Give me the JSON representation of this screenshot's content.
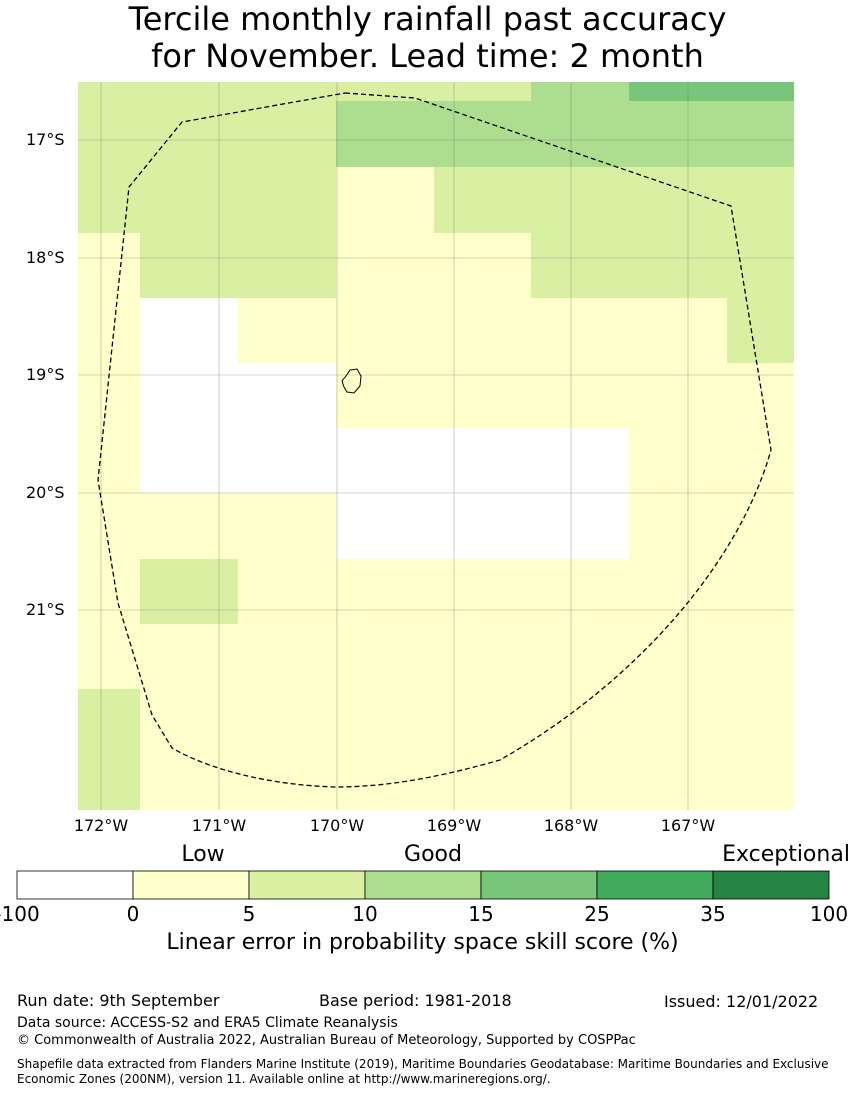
{
  "title": {
    "line1": "Tercile monthly rainfall past accuracy",
    "line2": "for November. Lead time: 2 month"
  },
  "map": {
    "lat_labels": [
      "17°S",
      "18°S",
      "19°S",
      "20°S",
      "21°S"
    ],
    "lon_labels": [
      "172°W",
      "171°W",
      "170°W",
      "169°W",
      "168°W",
      "167°W"
    ],
    "colors": [
      "#ffffff",
      "#ffffcc",
      "#d9f0a3",
      "#addd8e",
      "#78c679",
      "#41ab5d",
      "#238443"
    ]
  },
  "colorbar": {
    "categories": [
      "Low",
      "Good",
      "Exceptional"
    ],
    "ticks": [
      "-100",
      "0",
      "5",
      "10",
      "15",
      "25",
      "35",
      "100"
    ],
    "colors": [
      "#ffffff",
      "#ffffcc",
      "#d9f0a3",
      "#addd8e",
      "#78c679",
      "#41ab5d",
      "#238443"
    ],
    "label": "Linear error in probability space skill score (%)"
  },
  "footer": {
    "run_date": "Run date: 9th September",
    "base_period": "Base period: 1981-2018",
    "issued": "Issued: 12/01/2022",
    "data_source": "Data source: ACCESS-S2 and ERA5 Climate Reanalysis",
    "copyright": "© Commonwealth of Australia 2022, Australian Bureau of Meteorology, Supported by COSPPac",
    "shapefile": "Shapefile data extracted from Flanders Marine Institute (2019), Maritime Boundaries Geodatabase: Maritime Boundaries and Exclusive Economic Zones (200NM), version 11. Available online at http://www.marineregions.org/."
  }
}
